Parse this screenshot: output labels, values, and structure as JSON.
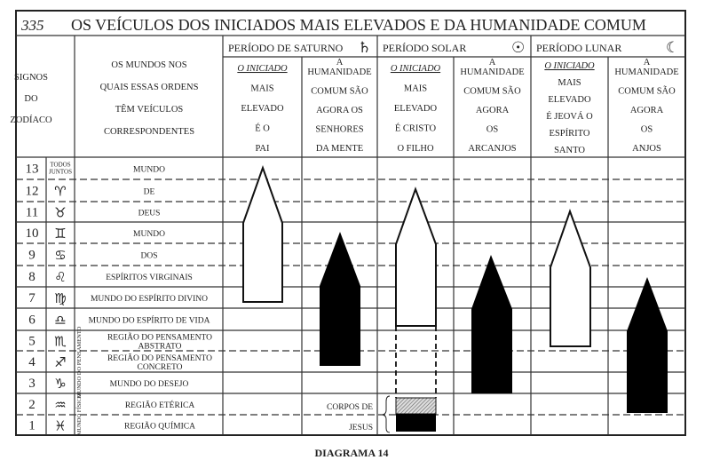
{
  "page_number_handwritten": "335",
  "title": "OS VEÍCULOS DOS INICIADOS MAIS ELEVADOS E DA HUMANIDADE COMUM",
  "headers": {
    "signs": [
      "SIGNOS",
      "DO",
      "ZODÍACO"
    ],
    "worlds": [
      "OS MUNDOS NOS",
      "QUAIS ESSAS ORDENS",
      "TÊM VEÍCULOS",
      "CORRESPONDENTES"
    ],
    "periods": [
      {
        "label": "PERÍODO DE SATURNO",
        "symbol": "♄",
        "icon": "saturn-icon"
      },
      {
        "label": "PERÍODO SOLAR",
        "symbol": "☉",
        "icon": "sun-icon"
      },
      {
        "label": "PERÍODO LUNAR",
        "symbol": "☾",
        "icon": "moon-icon"
      }
    ],
    "subcolumns": [
      [
        "O INICIADO",
        "MAIS",
        "ELEVADO",
        "É O",
        "PAI"
      ],
      [
        "A",
        "HUMANIDADE",
        "COMUM SÃO",
        "AGORA OS",
        "SENHORES",
        "DA MENTE"
      ],
      [
        "O INICIADO",
        "MAIS",
        "ELEVADO",
        "É CRISTO",
        "O FILHO"
      ],
      [
        "A",
        "HUMANIDADE",
        "COMUM SÃO",
        "AGORA",
        "OS",
        "ARCANJOS"
      ],
      [
        "O INICIADO",
        "MAIS",
        "ELEVADO",
        "É JEOVÁ O",
        "ESPÍRITO",
        "SANTO"
      ],
      [
        "A",
        "HUMANIDADE",
        "COMUM SÃO",
        "AGORA",
        "OS",
        "ANJOS"
      ]
    ]
  },
  "rows": [
    {
      "num": "13",
      "sign": "TODOS JUNTOS",
      "world": [
        "MUNDO"
      ]
    },
    {
      "num": "12",
      "sign": "♈",
      "world": [
        "DE"
      ]
    },
    {
      "num": "11",
      "sign": "♉",
      "world": [
        "DEUS"
      ]
    },
    {
      "num": "10",
      "sign": "♊",
      "world": [
        "MUNDO"
      ]
    },
    {
      "num": "9",
      "sign": "♋",
      "world": [
        "DOS"
      ]
    },
    {
      "num": "8",
      "sign": "♌",
      "world": [
        "ESPÍRITOS VIRGINAIS"
      ]
    },
    {
      "num": "7",
      "sign": "♍",
      "world": [
        "MUNDO DO ESPÍRITO DIVINO"
      ]
    },
    {
      "num": "6",
      "sign": "♎",
      "world": [
        "MUNDO DO ESPÍRITO DE VIDA"
      ]
    },
    {
      "num": "5",
      "sign": "♏",
      "world": [
        "REGIÃO DO PENSAMENTO",
        "ABSTRATO"
      ]
    },
    {
      "num": "4",
      "sign": "♐",
      "world": [
        "REGIÃO DO PENSAMENTO",
        "CONCRETO"
      ]
    },
    {
      "num": "3",
      "sign": "♑",
      "world": [
        "MUNDO DO DESEJO"
      ]
    },
    {
      "num": "2",
      "sign": "♒",
      "world": [
        "REGIÃO ETÉRICA"
      ]
    },
    {
      "num": "1",
      "sign": "♓",
      "world": [
        "REGIÃO QUÍMICA"
      ]
    }
  ],
  "side_labels": {
    "thought": "MUNDO DO PENSAMENTO",
    "physical": "MUNDO FÍSICO"
  },
  "jesus_label": [
    "CORPOS DE",
    "JESUS"
  ],
  "caption": "DIAGRAMA 14"
}
